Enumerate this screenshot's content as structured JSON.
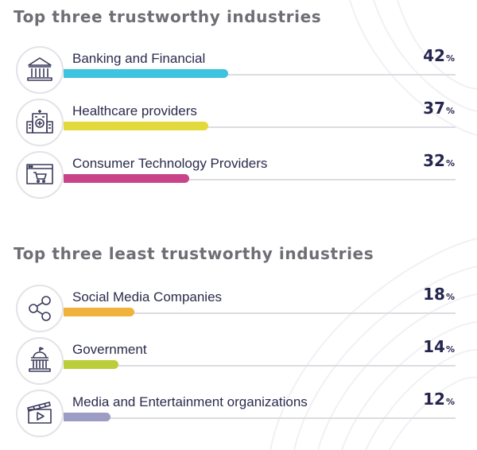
{
  "chart_data": [
    {
      "type": "bar",
      "title": "Top three trustworthy industries",
      "xlim": [
        0,
        100
      ],
      "unit": "%",
      "categories": [
        "Banking and Financial",
        "Healthcare providers",
        "Consumer Technology Providers"
      ],
      "values": [
        42,
        37,
        32
      ],
      "colors": [
        "#3ec3e0",
        "#e4d93c",
        "#c8438a"
      ],
      "icons": [
        "bank-icon",
        "hospital-icon",
        "online-shopping-cart-icon"
      ]
    },
    {
      "type": "bar",
      "title": "Top three least trustworthy industries",
      "xlim": [
        0,
        100
      ],
      "unit": "%",
      "categories": [
        "Social Media Companies",
        "Government",
        "Media and Entertainment organizations"
      ],
      "values": [
        18,
        14,
        12
      ],
      "colors": [
        "#f0b23a",
        "#bccd3a",
        "#9c9cc4"
      ],
      "icons": [
        "share-network-icon",
        "government-building-icon",
        "media-clapperboard-icon"
      ]
    }
  ]
}
